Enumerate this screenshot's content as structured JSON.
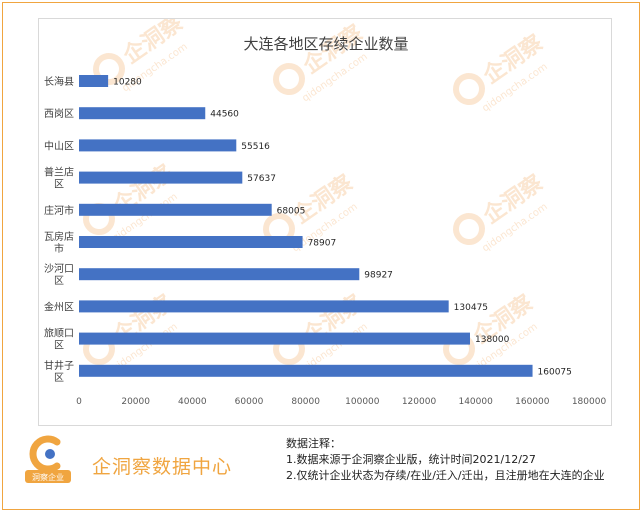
{
  "chart_data": {
    "type": "bar",
    "orientation": "horizontal",
    "title": "大连各地区存续企业数量",
    "categories": [
      "长海县",
      "西岗区",
      "中山区",
      "普兰店区",
      "庄河市",
      "瓦房店市",
      "沙河口区",
      "金州区",
      "旅顺口区",
      "甘井子区"
    ],
    "values": [
      10280,
      44560,
      55516,
      57637,
      68005,
      78907,
      98927,
      130475,
      138000,
      160075
    ],
    "xlim": [
      0,
      180000
    ],
    "xticks": [
      0,
      20000,
      40000,
      60000,
      80000,
      100000,
      120000,
      140000,
      160000,
      180000
    ],
    "grid": false,
    "bar_color": "#4472c4",
    "data_labels": true
  },
  "footer": {
    "logo_badge": "洞察企业",
    "brand": "企洞察数据中心",
    "notes_title": "数据注释：",
    "note_1": "1.数据来源于企洞察企业版，统计时间2021/12/27",
    "note_2": "2.仅统计企业状态为存续/在业/迁入/迁出，且注册地在大连的企业"
  },
  "watermark": {
    "text": "企洞察",
    "url": "qidongcha.com",
    "color": "#f7c89a"
  }
}
